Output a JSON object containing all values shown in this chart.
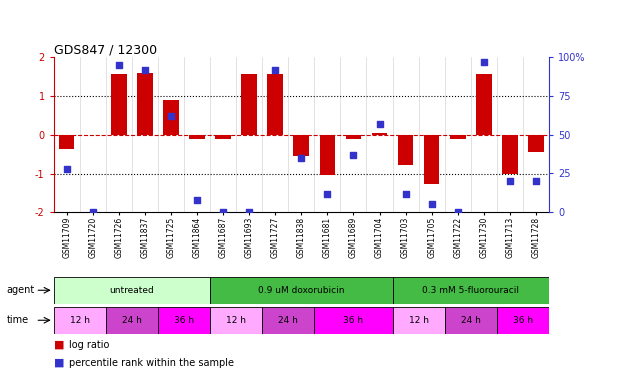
{
  "title": "GDS847 / 12300",
  "samples": [
    "GSM11709",
    "GSM11720",
    "GSM11726",
    "GSM11837",
    "GSM11725",
    "GSM11864",
    "GSM11687",
    "GSM11693",
    "GSM11727",
    "GSM11838",
    "GSM11681",
    "GSM11689",
    "GSM11704",
    "GSM11703",
    "GSM11705",
    "GSM11722",
    "GSM11730",
    "GSM11713",
    "GSM11728"
  ],
  "log_ratio": [
    -0.38,
    0.0,
    1.58,
    1.6,
    0.9,
    -0.12,
    -0.12,
    1.58,
    1.58,
    -0.55,
    -1.05,
    -0.12,
    0.05,
    -0.78,
    -1.26,
    -0.12,
    1.58,
    -1.0,
    -0.45
  ],
  "percentile": [
    28,
    0,
    95,
    92,
    62,
    8,
    0,
    0,
    92,
    35,
    12,
    37,
    57,
    12,
    5,
    0,
    97,
    20,
    20
  ],
  "ylim_left": [
    -2,
    2
  ],
  "ylim_right": [
    0,
    100
  ],
  "yticks_left": [
    -2,
    -1,
    0,
    1,
    2
  ],
  "yticks_right": [
    0,
    25,
    50,
    75,
    100
  ],
  "bar_color": "#cc0000",
  "dot_color": "#3333cc",
  "hline0_color": "#cc0000",
  "hline1_color": "#000000",
  "right_axis_color": "#3333cc",
  "agent_groups": [
    {
      "label": "untreated",
      "start": 0,
      "end": 6,
      "color": "#ccffcc"
    },
    {
      "label": "0.9 uM doxorubicin",
      "start": 6,
      "end": 13,
      "color": "#44cc44"
    },
    {
      "label": "0.3 mM 5-fluorouracil",
      "start": 13,
      "end": 19,
      "color": "#44cc44"
    }
  ],
  "time_groups": [
    {
      "label": "12 h",
      "start": 0,
      "end": 2,
      "color": "#ffaaff"
    },
    {
      "label": "24 h",
      "start": 2,
      "end": 4,
      "color": "#cc44cc"
    },
    {
      "label": "36 h",
      "start": 4,
      "end": 6,
      "color": "#ff00ff"
    },
    {
      "label": "12 h",
      "start": 6,
      "end": 8,
      "color": "#ffaaff"
    },
    {
      "label": "24 h",
      "start": 8,
      "end": 10,
      "color": "#cc44cc"
    },
    {
      "label": "36 h",
      "start": 10,
      "end": 13,
      "color": "#ff00ff"
    },
    {
      "label": "12 h",
      "start": 13,
      "end": 15,
      "color": "#ffaaff"
    },
    {
      "label": "24 h",
      "start": 15,
      "end": 17,
      "color": "#cc44cc"
    },
    {
      "label": "36 h",
      "start": 17,
      "end": 19,
      "color": "#ff00ff"
    }
  ]
}
